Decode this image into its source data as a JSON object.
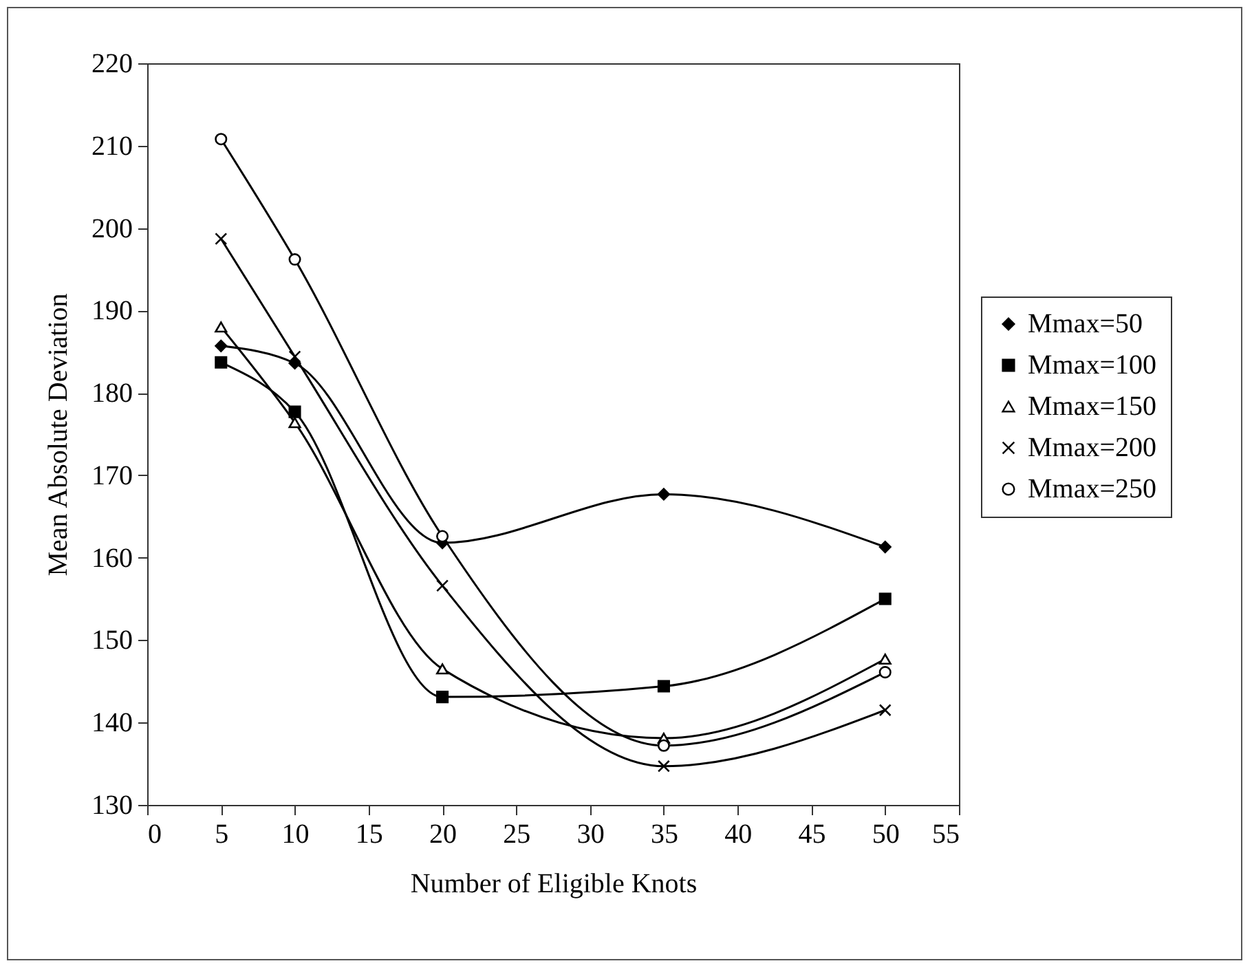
{
  "chart_data": {
    "type": "line",
    "xlabel": "Number of Eligible Knots",
    "ylabel": "Mean Absolute Deviation",
    "x": [
      5,
      10,
      20,
      35,
      50
    ],
    "xlim": [
      0,
      55
    ],
    "xticks": [
      0,
      5,
      10,
      15,
      20,
      25,
      30,
      35,
      40,
      45,
      50,
      55
    ],
    "ylim": [
      130,
      220
    ],
    "yticks": [
      130,
      140,
      150,
      160,
      170,
      180,
      190,
      200,
      210,
      220
    ],
    "grid": false,
    "legend": "right",
    "line_style": "solid",
    "series": [
      {
        "name": "Mmax=50",
        "color": "#000000",
        "marker": "diamond",
        "values": [
          185.7,
          183.6,
          161.8,
          167.7,
          161.3
        ]
      },
      {
        "name": "Mmax=100",
        "color": "#000000",
        "marker": "square",
        "values": [
          183.7,
          177.7,
          143.1,
          144.4,
          155
        ]
      },
      {
        "name": "Mmax=150",
        "color": "#000000",
        "marker": "triangle",
        "values": [
          188,
          176.4,
          146.5,
          138.1,
          147.7
        ]
      },
      {
        "name": "Mmax=200",
        "color": "#000000",
        "marker": "cross",
        "values": [
          198.7,
          184.4,
          156.6,
          134.7,
          141.5
        ]
      },
      {
        "name": "Mmax=250",
        "color": "#000000",
        "marker": "circle",
        "values": [
          210.8,
          196.2,
          162.6,
          137.2,
          146.1
        ]
      }
    ]
  }
}
